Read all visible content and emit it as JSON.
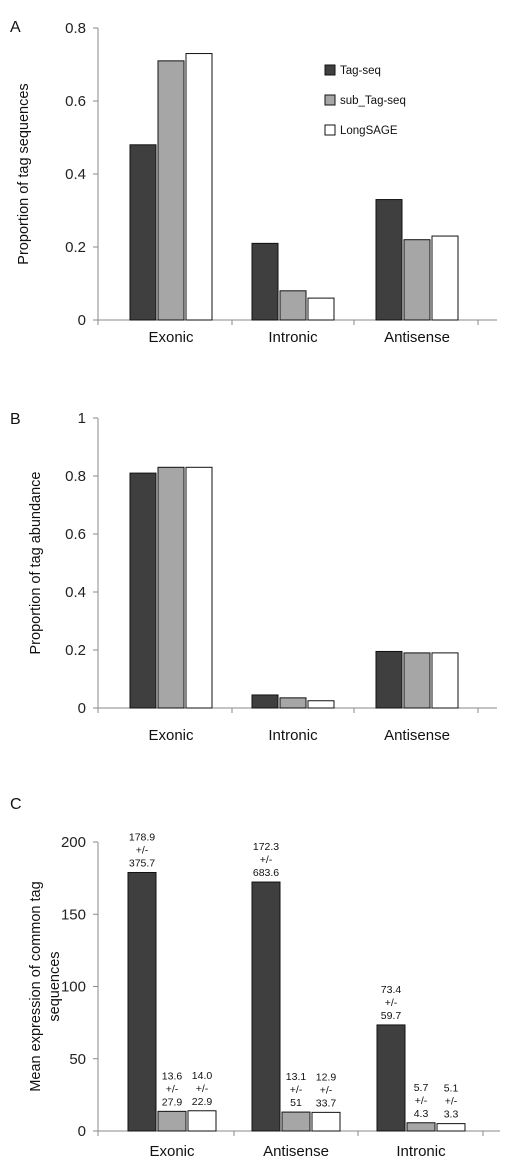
{
  "colors": {
    "tagseq": "#3f3f3f",
    "subtag": "#a6a6a6",
    "longsage": "#ffffff",
    "stroke": "#111111",
    "axis": "#8a8a8a"
  },
  "chart_data": [
    {
      "panel": "A",
      "type": "bar",
      "ylabel": "Proportion of tag sequences",
      "ylim": [
        0,
        0.8
      ],
      "yticks": [
        "0",
        "0.2",
        "0.4",
        "0.6",
        "0.8"
      ],
      "categories": [
        "Exonic",
        "Intronic",
        "Antisense"
      ],
      "legend_position": "top-right",
      "series": [
        {
          "name": "Tag-seq",
          "values": [
            0.48,
            0.21,
            0.33
          ]
        },
        {
          "name": "sub_Tag-seq",
          "values": [
            0.71,
            0.08,
            0.22
          ]
        },
        {
          "name": "LongSAGE",
          "values": [
            0.73,
            0.06,
            0.23
          ]
        }
      ]
    },
    {
      "panel": "B",
      "type": "bar",
      "ylabel": "Proportion of tag abundance",
      "ylim": [
        0,
        1
      ],
      "yticks": [
        "0",
        "0.2",
        "0.4",
        "0.6",
        "0.8",
        "1"
      ],
      "categories": [
        "Exonic",
        "Intronic",
        "Antisense"
      ],
      "series": [
        {
          "name": "Tag-seq",
          "values": [
            0.81,
            0.045,
            0.195
          ]
        },
        {
          "name": "sub_Tag-seq",
          "values": [
            0.83,
            0.035,
            0.19
          ]
        },
        {
          "name": "LongSAGE",
          "values": [
            0.83,
            0.025,
            0.19
          ]
        }
      ]
    },
    {
      "panel": "C",
      "type": "bar",
      "ylabel": [
        "Mean expression of common tag",
        "sequences"
      ],
      "ylim": [
        0,
        200
      ],
      "yticks": [
        "0",
        "50",
        "100",
        "150",
        "200"
      ],
      "categories": [
        "Exonic",
        "Antisense",
        "Intronic"
      ],
      "series": [
        {
          "name": "Tag-seq",
          "values": [
            178.9,
            172.3,
            73.4
          ],
          "labels": [
            [
              "178.9",
              "+/-",
              "375.7"
            ],
            [
              "172.3",
              "+/-",
              "683.6"
            ],
            [
              "73.4",
              "+/-",
              "59.7"
            ]
          ]
        },
        {
          "name": "sub_Tag-seq",
          "values": [
            13.6,
            13.1,
            5.7
          ],
          "labels": [
            [
              "13.6",
              "+/-",
              "27.9"
            ],
            [
              "13.1",
              "+/-",
              "51"
            ],
            [
              "5.7",
              "+/-",
              "4.3"
            ]
          ]
        },
        {
          "name": "LongSAGE",
          "values": [
            14.0,
            12.9,
            5.1
          ],
          "labels": [
            [
              "14.0",
              "+/-",
              "22.9"
            ],
            [
              "12.9",
              "+/-",
              "33.7"
            ],
            [
              "5.1",
              "+/-",
              "3.3"
            ]
          ]
        }
      ]
    }
  ]
}
